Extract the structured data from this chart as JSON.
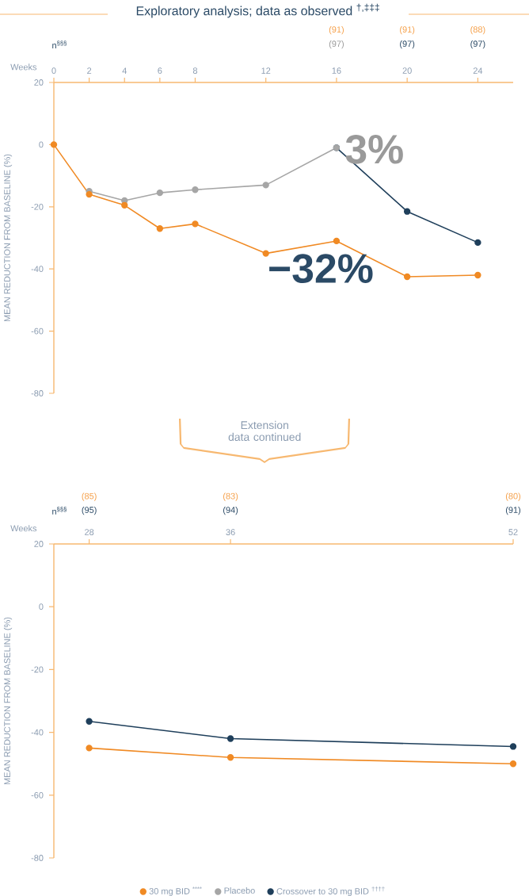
{
  "chart_data": [
    {
      "type": "line",
      "title": "Exploratory analysis; data as observed $^{†,‡‡‡}$",
      "xlabel": "Weeks",
      "ylabel": "MEAN REDUCTION FROM BASELINE (%)",
      "xlim": [
        0,
        26
      ],
      "xticks": [
        0,
        2,
        4,
        6,
        8,
        12,
        16,
        20,
        24
      ],
      "ylim": [
        -80,
        20
      ],
      "yticks": [
        20,
        0,
        -20,
        -40,
        -60,
        -80
      ],
      "marker": "circle",
      "legend": "bottom",
      "series": [
        {
          "name": "30 mg BID $^{****}$",
          "color": "#f08a24",
          "x": [
            0,
            2,
            4,
            6,
            8,
            12,
            16,
            20,
            24
          ],
          "values": [
            0,
            -16,
            -19.5,
            -27,
            -25.5,
            -35,
            -31,
            -42.5,
            -42
          ]
        },
        {
          "name": "Placebo",
          "color": "#a6a6a6",
          "x": [
            2,
            4,
            6,
            8,
            12,
            16
          ],
          "values": [
            -15,
            -18,
            -15.5,
            -14.5,
            -13,
            -1
          ]
        },
        {
          "name": "Crossover to 30 mg BID $^{††††}$",
          "color": "#1f3f5b",
          "x": [
            16,
            20,
            24
          ],
          "values": [
            -1,
            -21.5,
            -31.5
          ]
        }
      ],
      "annotations": [
        "n$^{§§§}$",
        "(91)",
        "(97)",
        "(91)",
        "(97)",
        "(88)",
        "(97)",
        {
          "text": "3%",
          "x": 16,
          "y": -1
        },
        {
          "text": "−32%",
          "x": 16,
          "y": -31
        }
      ]
    },
    {
      "type": "line",
      "xlabel": "Weeks",
      "ylabel": "MEAN REDUCTION FROM BASELINE (%)",
      "xlim": [
        26,
        52
      ],
      "xticks": [
        28,
        36,
        52
      ],
      "ylim": [
        -80,
        20
      ],
      "yticks": [
        20,
        0,
        -20,
        -40,
        -60,
        -80
      ],
      "marker": "circle",
      "series": [
        {
          "color": "#f08a24",
          "x": [
            28,
            36,
            52
          ],
          "values": [
            -45,
            -48,
            -50
          ]
        },
        {
          "color": "#1f3f5b",
          "x": [
            28,
            36,
            52
          ],
          "values": [
            -36.5,
            -42,
            -44.5
          ]
        }
      ],
      "annotations": [
        "Extension data continued",
        "n$^{§§§}$",
        "(85)",
        "(95)",
        "(83)",
        "(94)",
        "(80)",
        "(91)"
      ]
    }
  ]
}
